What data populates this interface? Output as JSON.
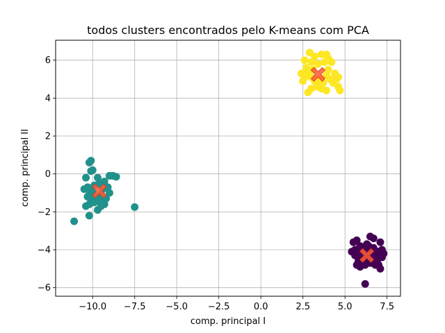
{
  "chart_data": {
    "type": "scatter",
    "title": "todos clusters encontrados pelo K-means com PCA",
    "xlabel": "comp. principal I",
    "ylabel": "comp. principal II",
    "xlim": [
      -12.2,
      8.3
    ],
    "ylim": [
      -6.45,
      7.05
    ],
    "xticks": [
      -10.0,
      -7.5,
      -5.0,
      -2.5,
      0.0,
      2.5,
      5.0,
      7.5
    ],
    "xtick_labels": [
      "−10.0",
      "−7.5",
      "−5.0",
      "−2.5",
      "0.0",
      "2.5",
      "5.0",
      "7.5"
    ],
    "yticks": [
      -6,
      -4,
      -2,
      0,
      2,
      4,
      6
    ],
    "ytick_labels": [
      "−6",
      "−4",
      "−2",
      "0",
      "2",
      "4",
      "6"
    ],
    "grid": true,
    "series": [
      {
        "color": "#440154",
        "points": [
          [
            6.2,
            -5.8
          ],
          [
            5.5,
            -3.6
          ],
          [
            5.7,
            -3.5
          ],
          [
            6.0,
            -3.9
          ],
          [
            6.3,
            -3.7
          ],
          [
            6.5,
            -3.3
          ],
          [
            6.7,
            -3.4
          ],
          [
            7.1,
            -3.6
          ],
          [
            5.4,
            -4.1
          ],
          [
            5.6,
            -4.3
          ],
          [
            5.8,
            -4.6
          ],
          [
            5.7,
            -4.8
          ],
          [
            5.9,
            -4.9
          ],
          [
            6.0,
            -4.5
          ],
          [
            6.1,
            -4.2
          ],
          [
            6.3,
            -4.0
          ],
          [
            6.4,
            -4.4
          ],
          [
            6.5,
            -4.7
          ],
          [
            6.6,
            -4.1
          ],
          [
            6.7,
            -3.9
          ],
          [
            6.8,
            -4.3
          ],
          [
            6.9,
            -4.6
          ],
          [
            7.0,
            -4.8
          ],
          [
            7.1,
            -5.0
          ],
          [
            7.2,
            -4.4
          ],
          [
            7.3,
            -4.2
          ],
          [
            7.2,
            -4.0
          ],
          [
            5.6,
            -4.0
          ],
          [
            6.2,
            -4.8
          ],
          [
            6.4,
            -3.8
          ],
          [
            6.8,
            -4.8
          ],
          [
            5.8,
            -4.2
          ],
          [
            6.1,
            -4.6
          ],
          [
            6.6,
            -4.5
          ],
          [
            7.0,
            -4.1
          ],
          [
            5.9,
            -3.8
          ]
        ]
      },
      {
        "color": "#21918c",
        "points": [
          [
            -11.1,
            -2.5
          ],
          [
            -10.2,
            -2.2
          ],
          [
            -7.5,
            -1.75
          ],
          [
            -10.1,
            0.7
          ],
          [
            -10.2,
            0.6
          ],
          [
            -10.0,
            0.2
          ],
          [
            -10.1,
            0.15
          ],
          [
            -10.4,
            -0.2
          ],
          [
            -9.7,
            -0.2
          ],
          [
            -9.0,
            -0.1
          ],
          [
            -8.8,
            -0.1
          ],
          [
            -8.6,
            -0.15
          ],
          [
            -10.5,
            -0.8
          ],
          [
            -10.3,
            -0.7
          ],
          [
            -10.1,
            -0.9
          ],
          [
            -9.9,
            -0.6
          ],
          [
            -9.6,
            -0.5
          ],
          [
            -9.3,
            -0.4
          ],
          [
            -9.1,
            -0.7
          ],
          [
            -9.0,
            -1.0
          ],
          [
            -10.3,
            -1.2
          ],
          [
            -10.1,
            -1.4
          ],
          [
            -10.2,
            -1.6
          ],
          [
            -10.4,
            -1.7
          ],
          [
            -9.9,
            -1.5
          ],
          [
            -9.7,
            -1.9
          ],
          [
            -9.5,
            -1.7
          ],
          [
            -9.3,
            -1.6
          ],
          [
            -9.2,
            -1.3
          ],
          [
            -9.5,
            -1.1
          ],
          [
            -9.8,
            -1.2
          ],
          [
            -10.0,
            -1.0
          ],
          [
            -9.4,
            -0.8
          ],
          [
            -9.6,
            -1.4
          ],
          [
            -10.2,
            -1.1
          ]
        ]
      },
      {
        "color": "#fde725",
        "points": [
          [
            2.9,
            6.4
          ],
          [
            3.2,
            6.2
          ],
          [
            3.6,
            6.3
          ],
          [
            3.9,
            6.3
          ],
          [
            4.0,
            6.1
          ],
          [
            2.6,
            6.0
          ],
          [
            3.0,
            5.9
          ],
          [
            3.4,
            5.8
          ],
          [
            3.8,
            5.9
          ],
          [
            4.2,
            5.9
          ],
          [
            2.4,
            5.3
          ],
          [
            2.6,
            5.1
          ],
          [
            2.8,
            5.4
          ],
          [
            3.0,
            5.1
          ],
          [
            3.2,
            4.9
          ],
          [
            3.5,
            5.0
          ],
          [
            3.7,
            4.8
          ],
          [
            3.9,
            5.2
          ],
          [
            4.1,
            5.0
          ],
          [
            4.3,
            4.8
          ],
          [
            4.4,
            5.3
          ],
          [
            4.6,
            5.1
          ],
          [
            4.6,
            4.6
          ],
          [
            4.7,
            4.4
          ],
          [
            2.8,
            4.3
          ],
          [
            3.0,
            4.5
          ],
          [
            3.3,
            4.6
          ],
          [
            3.5,
            4.7
          ],
          [
            3.9,
            4.4
          ],
          [
            2.5,
            4.9
          ],
          [
            2.7,
            5.6
          ],
          [
            3.1,
            5.5
          ],
          [
            4.0,
            5.5
          ],
          [
            4.5,
            5.0
          ],
          [
            3.6,
            4.5
          ]
        ]
      }
    ],
    "centroids": {
      "color": "#ff5a36",
      "points": [
        [
          3.4,
          5.25
        ],
        [
          -9.6,
          -0.9
        ],
        [
          6.3,
          -4.3
        ]
      ]
    }
  }
}
